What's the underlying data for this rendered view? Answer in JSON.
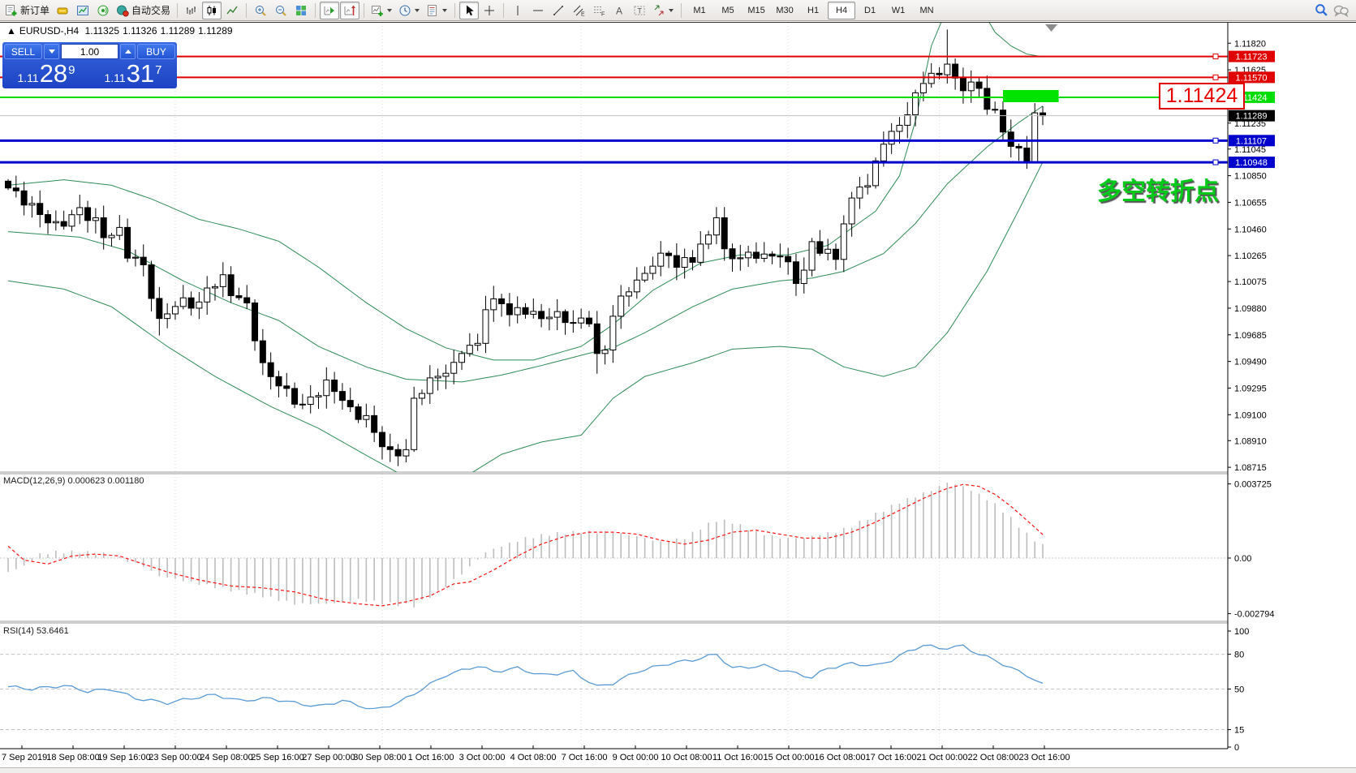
{
  "toolbar": {
    "new_order_label": "新订单",
    "autotrading_label": "自动交易",
    "timeframes": [
      "M1",
      "M5",
      "M15",
      "M30",
      "H1",
      "H4",
      "D1",
      "W1",
      "MN"
    ],
    "active_timeframe": "H4",
    "tool_letters": {
      "channel": "E",
      "fibo": "F",
      "text": "A",
      "label": "T"
    }
  },
  "symbol_line": {
    "arrow": "▲",
    "symbol": "EURUSD-,H4",
    "open": "1.11325",
    "high": "1.11326",
    "low": "1.11289",
    "close": "1.11289"
  },
  "trade_panel": {
    "sell_label": "SELL",
    "buy_label": "BUY",
    "volume": "1.00",
    "sell_price": {
      "prefix": "1.11",
      "big": "28",
      "sup": "9"
    },
    "buy_price": {
      "prefix": "1.11",
      "big": "31",
      "sup": "7"
    }
  },
  "annotations": {
    "price_box": "1.11424",
    "cn_label": "多空转折点"
  },
  "panels": {
    "macd_label": "MACD(12,26,9) 0.000623 0.001180",
    "rsi_label": "RSI(14) 53.6461"
  },
  "chart_data": {
    "type": "candlestick",
    "symbol": "EURUSD-",
    "timeframe": "H4",
    "bars": 131,
    "price_axis": {
      "top": 1.1197,
      "bottom": 1.0868,
      "ticks": [
        1.1182,
        1.11625,
        1.11235,
        1.11045,
        1.1085,
        1.10655,
        1.1046,
        1.10265,
        1.10075,
        1.0988,
        1.09685,
        1.0949,
        1.09295,
        1.091,
        1.0891,
        1.08715
      ]
    },
    "closes_anchors": [
      [
        0,
        1.1076
      ],
      [
        2,
        1.1067
      ],
      [
        4,
        1.1057
      ],
      [
        6,
        1.1048
      ],
      [
        7,
        1.1051
      ],
      [
        9,
        1.106
      ],
      [
        11,
        1.1051
      ],
      [
        12,
        1.1041
      ],
      [
        14,
        1.1044
      ],
      [
        15,
        1.1028
      ],
      [
        17,
        1.1019
      ],
      [
        19,
        1.0977
      ],
      [
        20,
        1.0986
      ],
      [
        22,
        1.0993
      ],
      [
        24,
        1.099
      ],
      [
        25,
        1.1003
      ],
      [
        27,
        1.1009
      ],
      [
        28,
        1.1
      ],
      [
        30,
        1.099
      ],
      [
        32,
        1.0945
      ],
      [
        33,
        1.0939
      ],
      [
        35,
        1.0926
      ],
      [
        37,
        1.0916
      ],
      [
        38,
        1.0922
      ],
      [
        40,
        1.0932
      ],
      [
        41,
        1.0929
      ],
      [
        43,
        1.0913
      ],
      [
        45,
        1.0907
      ],
      [
        46,
        1.0897
      ],
      [
        48,
        1.0881
      ],
      [
        50,
        1.0884
      ],
      [
        51,
        1.092
      ],
      [
        52,
        1.0929
      ],
      [
        54,
        1.0939
      ],
      [
        56,
        1.0945
      ],
      [
        57,
        1.0958
      ],
      [
        59,
        1.0961
      ],
      [
        60,
        1.099
      ],
      [
        62,
        1.0993
      ],
      [
        63,
        1.0984
      ],
      [
        65,
        1.0987
      ],
      [
        67,
        1.098
      ],
      [
        68,
        1.0984
      ],
      [
        70,
        1.098
      ],
      [
        71,
        1.0977
      ],
      [
        73,
        1.098
      ],
      [
        74,
        1.0952
      ],
      [
        75,
        1.0958
      ],
      [
        76,
        1.0984
      ],
      [
        78,
        1.1003
      ],
      [
        80,
        1.1012
      ],
      [
        81,
        1.1022
      ],
      [
        83,
        1.1028
      ],
      [
        84,
        1.1019
      ],
      [
        86,
        1.1025
      ],
      [
        88,
        1.1041
      ],
      [
        89,
        1.1057
      ],
      [
        90,
        1.1028
      ],
      [
        92,
        1.1025
      ],
      [
        94,
        1.1028
      ],
      [
        95,
        1.1025
      ],
      [
        97,
        1.1028
      ],
      [
        99,
        1.1009
      ],
      [
        100,
        1.1015
      ],
      [
        101,
        1.1035
      ],
      [
        103,
        1.1028
      ],
      [
        104,
        1.1025
      ],
      [
        105,
        1.1051
      ],
      [
        107,
        1.108
      ],
      [
        108,
        1.1076
      ],
      [
        109,
        1.1095
      ],
      [
        110,
        1.1111
      ],
      [
        111,
        1.1114
      ],
      [
        112,
        1.1124
      ],
      [
        113,
        1.113
      ],
      [
        114,
        1.1143
      ],
      [
        115,
        1.1156
      ],
      [
        117,
        1.1159
      ],
      [
        118,
        1.1169
      ],
      [
        119,
        1.1153
      ],
      [
        120,
        1.115
      ],
      [
        121,
        1.1153
      ],
      [
        122,
        1.1147
      ],
      [
        123,
        1.1137
      ],
      [
        124,
        1.113
      ],
      [
        125,
        1.1118
      ],
      [
        126,
        1.1108
      ],
      [
        127,
        1.1102
      ],
      [
        128,
        1.1095
      ],
      [
        129,
        1.1131
      ],
      [
        130,
        1.11289
      ]
    ],
    "wick_overrides": [
      {
        "i": 19,
        "l": 1.0968
      },
      {
        "i": 46,
        "l": 1.089
      },
      {
        "i": 60,
        "h": 1.0997
      },
      {
        "i": 74,
        "l": 1.094
      },
      {
        "i": 89,
        "h": 1.1062
      },
      {
        "i": 105,
        "h": 1.1056
      },
      {
        "i": 118,
        "h": 1.1192
      },
      {
        "i": 128,
        "l": 1.109
      },
      {
        "i": 129,
        "l": 1.1101
      },
      {
        "i": 130,
        "l": 1.1122
      }
    ],
    "bollinger": {
      "color": "#2e8b57",
      "upper": [
        [
          0,
          1.1078
        ],
        [
          7,
          1.1082
        ],
        [
          13,
          1.1078
        ],
        [
          18,
          1.1068
        ],
        [
          24,
          1.1053
        ],
        [
          29,
          1.1046
        ],
        [
          34,
          1.1037
        ],
        [
          39,
          1.1018
        ],
        [
          45,
          1.0992
        ],
        [
          50,
          1.0973
        ],
        [
          55,
          1.0959
        ],
        [
          61,
          1.095
        ],
        [
          66,
          1.095
        ],
        [
          72,
          1.096
        ],
        [
          76,
          1.0976
        ],
        [
          81,
          1.1001
        ],
        [
          87,
          1.1021
        ],
        [
          92,
          1.1027
        ],
        [
          98,
          1.1027
        ],
        [
          103,
          1.1034
        ],
        [
          109,
          1.1059
        ],
        [
          112,
          1.1085
        ],
        [
          114,
          1.1125
        ],
        [
          116,
          1.118
        ],
        [
          118,
          1.1208
        ],
        [
          120,
          1.1216
        ],
        [
          122,
          1.121
        ],
        [
          124,
          1.119
        ],
        [
          126,
          1.118
        ],
        [
          128,
          1.1174
        ],
        [
          130,
          1.1172
        ]
      ],
      "middle": [
        [
          0,
          1.1044
        ],
        [
          9,
          1.104
        ],
        [
          15,
          1.103
        ],
        [
          22,
          1.1008
        ],
        [
          28,
          1.0992
        ],
        [
          34,
          1.0979
        ],
        [
          39,
          1.096
        ],
        [
          45,
          1.0945
        ],
        [
          50,
          1.0936
        ],
        [
          57,
          1.0934
        ],
        [
          62,
          1.0939
        ],
        [
          67,
          1.0946
        ],
        [
          73,
          1.0955
        ],
        [
          76,
          1.0959
        ],
        [
          80,
          1.097
        ],
        [
          86,
          1.0989
        ],
        [
          91,
          1.1002
        ],
        [
          97,
          1.1008
        ],
        [
          101,
          1.101
        ],
        [
          105,
          1.1015
        ],
        [
          110,
          1.1028
        ],
        [
          114,
          1.105
        ],
        [
          118,
          1.1079
        ],
        [
          123,
          1.1106
        ],
        [
          127,
          1.1124
        ],
        [
          130,
          1.1136
        ]
      ],
      "lower": [
        [
          0,
          1.1008
        ],
        [
          7,
          1.1002
        ],
        [
          13,
          1.0989
        ],
        [
          20,
          1.096
        ],
        [
          26,
          1.0938
        ],
        [
          33,
          1.0916
        ],
        [
          39,
          1.09
        ],
        [
          46,
          1.0877
        ],
        [
          51,
          1.0861
        ],
        [
          57,
          1.0863
        ],
        [
          62,
          1.0881
        ],
        [
          67,
          1.089
        ],
        [
          72,
          1.0895
        ],
        [
          76,
          1.0922
        ],
        [
          80,
          1.0938
        ],
        [
          86,
          1.0948
        ],
        [
          91,
          1.0958
        ],
        [
          97,
          1.096
        ],
        [
          101,
          1.0958
        ],
        [
          105,
          1.0945
        ],
        [
          110,
          1.0938
        ],
        [
          114,
          1.0945
        ],
        [
          118,
          1.097
        ],
        [
          123,
          1.1015
        ],
        [
          127,
          1.106
        ],
        [
          130,
          1.1095
        ]
      ]
    },
    "hlines": [
      {
        "price": 1.11723,
        "color": "#e00000",
        "width": 2
      },
      {
        "price": 1.1157,
        "color": "#e00000",
        "width": 2
      },
      {
        "price": 1.11424,
        "color": "#00dd00",
        "width": 2
      },
      {
        "price": 1.11107,
        "color": "#0000cc",
        "width": 3
      },
      {
        "price": 1.10948,
        "color": "#0000cc",
        "width": 3
      }
    ],
    "current_price": 1.11289,
    "green_rect": {
      "bar_start": 125,
      "bar_end": 132,
      "price_top": 1.11477,
      "price_bottom": 1.11388,
      "color": "#00e400"
    },
    "macd": {
      "hist_color": "#bdbdbd",
      "signal_color": "#ff1010",
      "axis_ticks": [
        "0.003725",
        "0.00",
        "-0.002794"
      ],
      "axis_values": [
        0.003725,
        0,
        -0.002794
      ],
      "main_anchors": [
        [
          0,
          -0.0007
        ],
        [
          2,
          -0.0004
        ],
        [
          4,
          0.0002
        ],
        [
          6,
          0.0003
        ],
        [
          9,
          0.0003
        ],
        [
          12,
          0.0002
        ],
        [
          14,
          0.0
        ],
        [
          17,
          -0.0004
        ],
        [
          19,
          -0.0009
        ],
        [
          24,
          -0.0013
        ],
        [
          28,
          -0.0016
        ],
        [
          32,
          -0.0019
        ],
        [
          36,
          -0.0023
        ],
        [
          40,
          -0.0023
        ],
        [
          44,
          -0.0021
        ],
        [
          48,
          -0.0023
        ],
        [
          51,
          -0.0024
        ],
        [
          54,
          -0.0017
        ],
        [
          57,
          -0.0008
        ],
        [
          60,
          0.0003
        ],
        [
          62,
          0.0006
        ],
        [
          65,
          0.001
        ],
        [
          68,
          0.0012
        ],
        [
          72,
          0.0013
        ],
        [
          76,
          0.0013
        ],
        [
          79,
          0.0011
        ],
        [
          82,
          0.0008
        ],
        [
          85,
          0.001
        ],
        [
          87,
          0.0015
        ],
        [
          89,
          0.0019
        ],
        [
          91,
          0.0018
        ],
        [
          94,
          0.0013
        ],
        [
          97,
          0.001
        ],
        [
          100,
          0.001
        ],
        [
          102,
          0.0012
        ],
        [
          104,
          0.0013
        ],
        [
          106,
          0.0016
        ],
        [
          109,
          0.0022
        ],
        [
          112,
          0.0028
        ],
        [
          114,
          0.0031
        ],
        [
          116,
          0.0034
        ],
        [
          118,
          0.0038
        ],
        [
          120,
          0.0036
        ],
        [
          122,
          0.0032
        ],
        [
          124,
          0.0027
        ],
        [
          126,
          0.002
        ],
        [
          128,
          0.0012
        ],
        [
          130,
          0.000623
        ]
      ],
      "signal_anchors": [
        [
          0,
          0.0006
        ],
        [
          2,
          -0.0001
        ],
        [
          5,
          -0.0003
        ],
        [
          8,
          0.0001
        ],
        [
          11,
          0.0002
        ],
        [
          14,
          0.0001
        ],
        [
          17,
          -0.0003
        ],
        [
          20,
          -0.0007
        ],
        [
          24,
          -0.0011
        ],
        [
          28,
          -0.0014
        ],
        [
          32,
          -0.0015
        ],
        [
          36,
          -0.0017
        ],
        [
          40,
          -0.0021
        ],
        [
          44,
          -0.0023
        ],
        [
          47,
          -0.0024
        ],
        [
          50,
          -0.0022
        ],
        [
          53,
          -0.0019
        ],
        [
          56,
          -0.0013
        ],
        [
          58,
          -0.0012
        ],
        [
          61,
          -0.0006
        ],
        [
          64,
          0.0001
        ],
        [
          67,
          0.0007
        ],
        [
          70,
          0.0011
        ],
        [
          73,
          0.0013
        ],
        [
          76,
          0.0013
        ],
        [
          79,
          0.0012
        ],
        [
          82,
          0.0009
        ],
        [
          85,
          0.0007
        ],
        [
          88,
          0.0009
        ],
        [
          91,
          0.0013
        ],
        [
          94,
          0.0014
        ],
        [
          97,
          0.0012
        ],
        [
          100,
          0.001
        ],
        [
          103,
          0.001
        ],
        [
          106,
          0.0013
        ],
        [
          109,
          0.0018
        ],
        [
          112,
          0.0024
        ],
        [
          115,
          0.003
        ],
        [
          118,
          0.0035
        ],
        [
          120,
          0.0037
        ],
        [
          122,
          0.0036
        ],
        [
          124,
          0.0032
        ],
        [
          126,
          0.0026
        ],
        [
          128,
          0.0019
        ],
        [
          130,
          0.00118
        ]
      ]
    },
    "rsi": {
      "color": "#5b9bd5",
      "levels": [
        80,
        50,
        15
      ],
      "axis_ticks": [
        "100",
        "80",
        "50",
        "15",
        "0"
      ],
      "axis_values": [
        100,
        80,
        50,
        15,
        0
      ],
      "anchors": [
        [
          0,
          52
        ],
        [
          3,
          50
        ],
        [
          7,
          53
        ],
        [
          10,
          48
        ],
        [
          13,
          50
        ],
        [
          16,
          42
        ],
        [
          20,
          38
        ],
        [
          23,
          42
        ],
        [
          26,
          45
        ],
        [
          29,
          40
        ],
        [
          33,
          42
        ],
        [
          36,
          38
        ],
        [
          39,
          35
        ],
        [
          42,
          40
        ],
        [
          46,
          32
        ],
        [
          49,
          38
        ],
        [
          52,
          50
        ],
        [
          55,
          62
        ],
        [
          59,
          70
        ],
        [
          61,
          65
        ],
        [
          64,
          68
        ],
        [
          67,
          62
        ],
        [
          71,
          65
        ],
        [
          74,
          52
        ],
        [
          76,
          55
        ],
        [
          79,
          65
        ],
        [
          83,
          72
        ],
        [
          86,
          75
        ],
        [
          89,
          80
        ],
        [
          91,
          68
        ],
        [
          95,
          70
        ],
        [
          98,
          65
        ],
        [
          101,
          60
        ],
        [
          103,
          68
        ],
        [
          106,
          72
        ],
        [
          109,
          70
        ],
        [
          111,
          75
        ],
        [
          113,
          82
        ],
        [
          115,
          88
        ],
        [
          117,
          85
        ],
        [
          120,
          87
        ],
        [
          122,
          80
        ],
        [
          124,
          75
        ],
        [
          126,
          68
        ],
        [
          128,
          62
        ],
        [
          129,
          58
        ],
        [
          130,
          53.6
        ]
      ]
    },
    "time_labels": [
      "7 Sep 2019",
      "18 Sep 08:00",
      "19 Sep 16:00",
      "23 Sep 00:00",
      "24 Sep 08:00",
      "25 Sep 16:00",
      "27 Sep 00:00",
      "30 Sep 08:00",
      "1 Oct 16:00",
      "3 Oct 00:00",
      "4 Oct 08:00",
      "7 Oct 16:00",
      "9 Oct 00:00",
      "10 Oct 08:00",
      "11 Oct 16:00",
      "15 Oct 00:00",
      "16 Oct 08:00",
      "17 Oct 16:00",
      "21 Oct 00:00",
      "22 Oct 08:00",
      "23 Oct 16:00"
    ],
    "week_separator_bars": [
      21,
      47,
      72,
      98,
      117
    ]
  }
}
